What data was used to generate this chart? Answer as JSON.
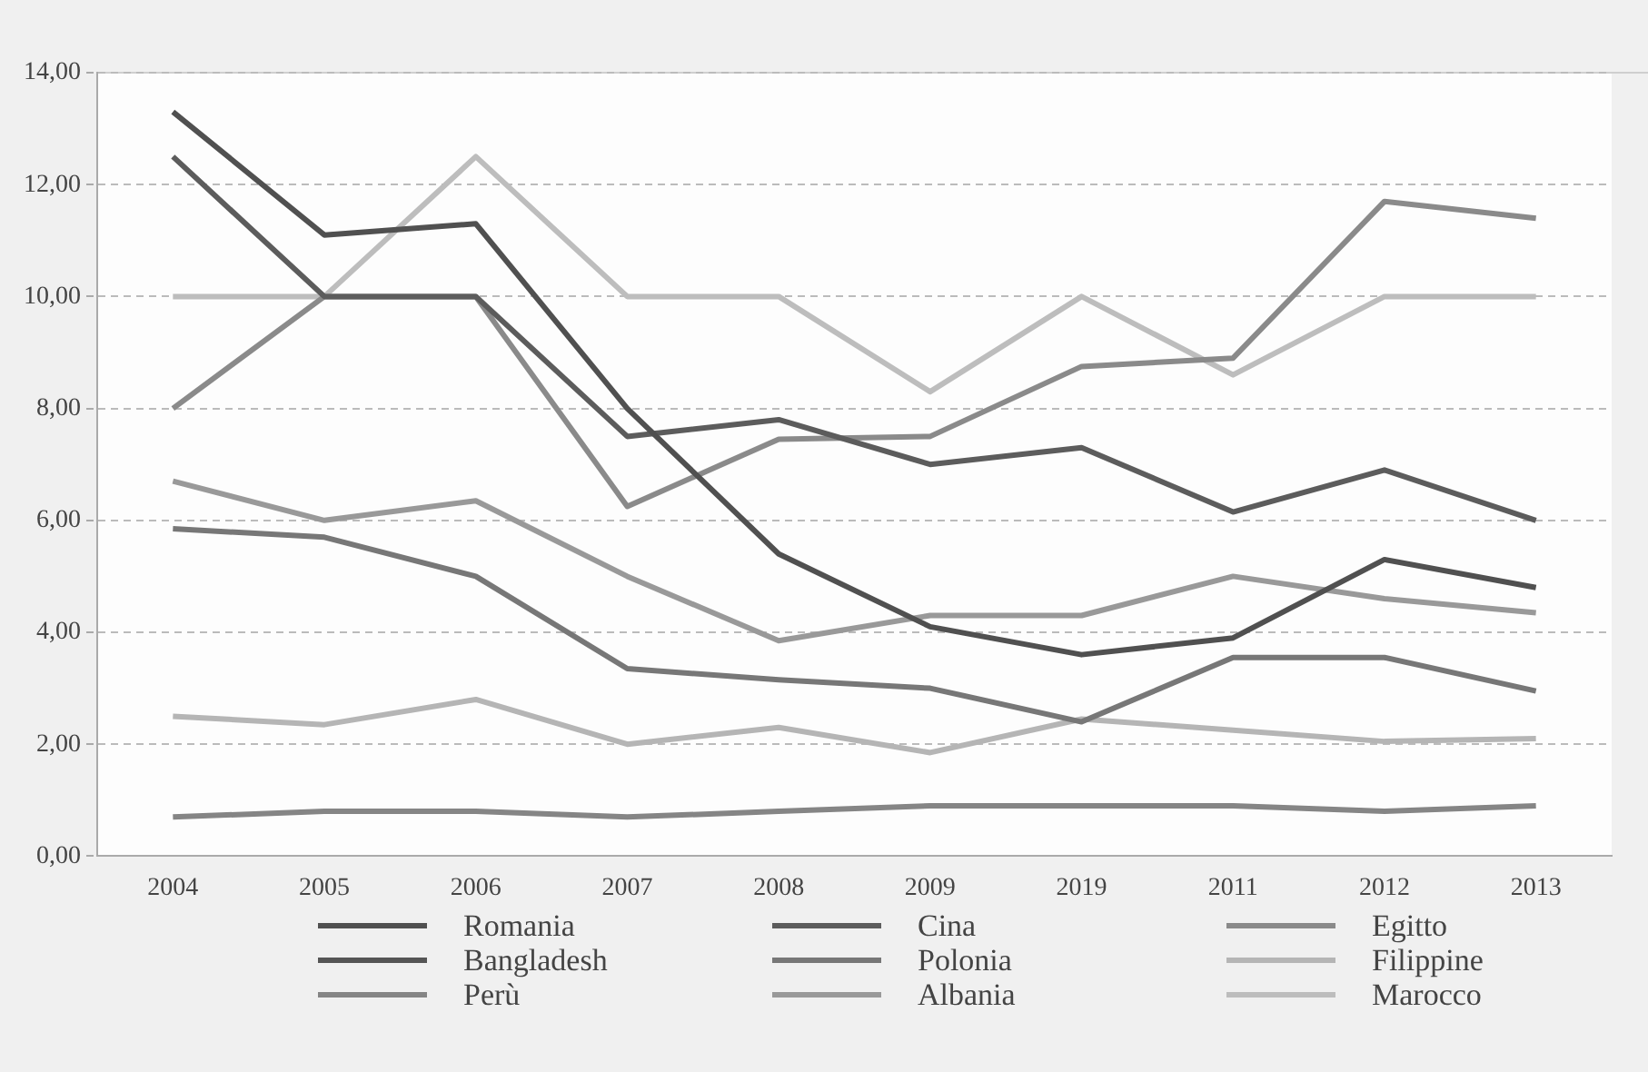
{
  "chart_data": {
    "type": "line",
    "categories": [
      "2004",
      "2005",
      "2006",
      "2007",
      "2008",
      "2009",
      "2019",
      "2011",
      "2012",
      "2013"
    ],
    "ylim": [
      0,
      14
    ],
    "yticks": [
      {
        "value": 0,
        "label": "0,00"
      },
      {
        "value": 2,
        "label": "2,00"
      },
      {
        "value": 4,
        "label": "4,00"
      },
      {
        "value": 6,
        "label": "6,00"
      },
      {
        "value": 8,
        "label": "8,00"
      },
      {
        "value": 10,
        "label": "10,00"
      },
      {
        "value": 12,
        "label": "12,00"
      },
      {
        "value": 14,
        "label": "14,00"
      }
    ],
    "grid": "y",
    "legend": "bottom",
    "marker": "none",
    "line_style": "solid",
    "series": [
      {
        "name": "Romania",
        "color": "#505050",
        "values": [
          13.3,
          11.1,
          11.3,
          8.0,
          5.4,
          4.1,
          3.6,
          3.9,
          5.3,
          4.8
        ]
      },
      {
        "name": "Cina",
        "color": "#5c5c5c",
        "values": [
          12.5,
          10.0,
          10.0,
          7.5,
          7.8,
          7.0,
          7.3,
          6.15,
          6.9,
          6.0
        ]
      },
      {
        "name": "Egitto",
        "color": "#8a8a8a",
        "values": [
          8.0,
          10.0,
          10.0,
          6.25,
          7.45,
          7.5,
          8.75,
          8.9,
          11.7,
          11.4
        ]
      },
      {
        "name": "Bangladesh",
        "color": "#555555",
        "values": [
          null,
          null,
          null,
          null,
          null,
          null,
          null,
          null,
          null,
          null
        ]
      },
      {
        "name": "Polonia",
        "color": "#777777",
        "values": [
          5.85,
          5.7,
          5.0,
          3.35,
          3.15,
          3.0,
          2.4,
          3.55,
          3.55,
          2.95
        ]
      },
      {
        "name": "Filippine",
        "color": "#b5b5b5",
        "values": [
          2.5,
          2.35,
          2.8,
          2.0,
          2.3,
          1.85,
          2.45,
          2.25,
          2.05,
          2.1
        ]
      },
      {
        "name": "Perù",
        "color": "#858585",
        "values": [
          0.7,
          0.8,
          0.8,
          0.7,
          0.8,
          0.9,
          0.9,
          0.9,
          0.8,
          0.9
        ]
      },
      {
        "name": "Albania",
        "color": "#999999",
        "values": [
          6.7,
          6.0,
          6.35,
          5.0,
          3.85,
          4.3,
          4.3,
          5.0,
          4.6,
          4.35
        ]
      },
      {
        "name": "Marocco",
        "color": "#bdbdbd",
        "values": [
          10.0,
          10.0,
          12.5,
          10.0,
          10.0,
          8.3,
          10.0,
          8.6,
          10.0,
          10.0
        ]
      }
    ]
  }
}
